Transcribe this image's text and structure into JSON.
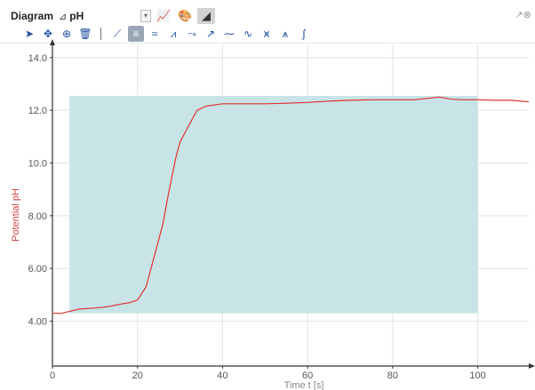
{
  "toolbar": {
    "diagram_label": "Diagram",
    "channel_icon": "pH-sensor-icon",
    "channel_value": "pH",
    "buttons": [
      "line-chart-icon",
      "palette-icon",
      "ruler-icon"
    ],
    "corner_icons": "↗⊗"
  },
  "tools": {
    "items": [
      "pointer-icon",
      "move-icon",
      "zoom-icon",
      "trash-icon",
      "line-tool-icon",
      "table-tool-icon",
      "noise-icon",
      "peak-icon",
      "tangent-icon",
      "curve-icon",
      "spline-icon",
      "wave-icon",
      "multi-peak-icon",
      "multi-peak-2-icon",
      "integral-icon"
    ]
  },
  "chart_data": {
    "type": "line",
    "xlabel": "Time t [s]",
    "ylabel": "Potential pH",
    "xlim": [
      0,
      112
    ],
    "ylim": [
      2.3,
      14.5
    ],
    "x_ticks": [
      0,
      20,
      40,
      60,
      80,
      100
    ],
    "x_tick_labels": [
      "0",
      "20",
      "40",
      "60",
      "80",
      "100"
    ],
    "y_ticks": [
      4,
      6,
      8,
      10,
      12,
      14
    ],
    "y_tick_labels": [
      "4.00",
      "6.00",
      "8.00",
      "10.0",
      "12.0",
      "14.0"
    ],
    "grid": true,
    "highlight_region": {
      "x": [
        4,
        100
      ],
      "y": [
        4.3,
        12.55
      ],
      "color": "#c8e4e6"
    },
    "series": [
      {
        "color": "#e03030",
        "x": [
          0,
          2,
          4,
          6,
          8,
          10,
          12,
          14,
          16,
          18,
          20,
          22,
          24,
          26,
          27,
          28,
          29,
          30,
          32,
          34,
          36,
          38,
          40,
          44,
          50,
          55,
          60,
          65,
          70,
          75,
          80,
          85,
          88,
          91,
          94,
          97,
          100,
          104,
          108,
          112
        ],
        "y": [
          4.3,
          4.3,
          4.37,
          4.45,
          4.48,
          4.5,
          4.53,
          4.58,
          4.65,
          4.7,
          4.8,
          5.3,
          6.5,
          7.7,
          8.6,
          9.4,
          10.2,
          10.8,
          11.4,
          12.0,
          12.15,
          12.2,
          12.25,
          12.25,
          12.25,
          12.27,
          12.3,
          12.35,
          12.38,
          12.4,
          12.4,
          12.4,
          12.45,
          12.5,
          12.42,
          12.4,
          12.4,
          12.38,
          12.38,
          12.32
        ]
      }
    ]
  }
}
